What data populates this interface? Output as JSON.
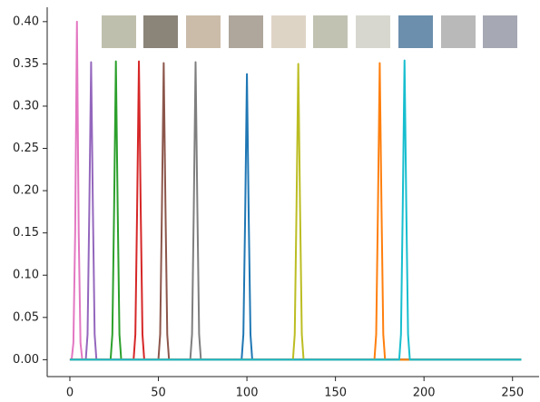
{
  "chart_data": {
    "type": "line",
    "series": [
      {
        "color": "#e377c2",
        "x": [
          0,
          1,
          2,
          3,
          4,
          5,
          6,
          7,
          8,
          255
        ],
        "values": [
          0,
          0,
          0.02,
          0.15,
          0.4,
          0.15,
          0.02,
          0,
          0,
          0
        ]
      },
      {
        "color": "#9467bd",
        "x": [
          0,
          8,
          9,
          10,
          11,
          12,
          13,
          14,
          15,
          16,
          255
        ],
        "values": [
          0,
          0,
          0,
          0.03,
          0.18,
          0.352,
          0.18,
          0.03,
          0,
          0,
          0
        ]
      },
      {
        "color": "#2ca02c",
        "x": [
          0,
          22,
          23,
          24,
          25,
          26,
          27,
          28,
          29,
          30,
          255
        ],
        "values": [
          0,
          0,
          0,
          0.03,
          0.18,
          0.353,
          0.18,
          0.03,
          0,
          0,
          0
        ]
      },
      {
        "color": "#d62728",
        "x": [
          0,
          35,
          36,
          37,
          38,
          39,
          40,
          41,
          42,
          43,
          255
        ],
        "values": [
          0,
          0,
          0,
          0.03,
          0.18,
          0.353,
          0.18,
          0.03,
          0,
          0,
          0
        ]
      },
      {
        "color": "#8c564b",
        "x": [
          0,
          49,
          50,
          51,
          52,
          53,
          54,
          55,
          56,
          57,
          255
        ],
        "values": [
          0,
          0,
          0,
          0.03,
          0.18,
          0.351,
          0.18,
          0.03,
          0,
          0,
          0
        ]
      },
      {
        "color": "#7f7f7f",
        "x": [
          0,
          67,
          68,
          69,
          70,
          71,
          72,
          73,
          74,
          75,
          255
        ],
        "values": [
          0,
          0,
          0,
          0.03,
          0.18,
          0.352,
          0.18,
          0.03,
          0,
          0,
          0
        ]
      },
      {
        "color": "#1f77b4",
        "x": [
          0,
          96,
          97,
          98,
          99,
          100,
          101,
          102,
          103,
          104,
          255
        ],
        "values": [
          0,
          0,
          0,
          0.03,
          0.17,
          0.338,
          0.17,
          0.03,
          0,
          0,
          0
        ]
      },
      {
        "color": "#bcbd22",
        "x": [
          0,
          125,
          126,
          127,
          128,
          129,
          130,
          131,
          132,
          133,
          255
        ],
        "values": [
          0,
          0,
          0,
          0.03,
          0.18,
          0.35,
          0.18,
          0.03,
          0,
          0,
          0
        ]
      },
      {
        "color": "#ff7f0e",
        "x": [
          0,
          171,
          172,
          173,
          174,
          175,
          176,
          177,
          178,
          179,
          255
        ],
        "values": [
          0,
          0,
          0,
          0.03,
          0.18,
          0.351,
          0.18,
          0.03,
          0,
          0,
          0
        ]
      },
      {
        "color": "#17becf",
        "x": [
          0,
          185,
          186,
          187,
          188,
          189,
          190,
          191,
          192,
          193,
          255
        ],
        "values": [
          0,
          0,
          0,
          0.03,
          0.18,
          0.354,
          0.18,
          0.03,
          0,
          0,
          0
        ]
      }
    ],
    "xlim": [
      -12.8,
      265
    ],
    "xticks": [
      0,
      50,
      100,
      150,
      200,
      250
    ],
    "ylim": [
      -0.02,
      0.417
    ],
    "yticks": [
      {
        "value": 0,
        "label": "0.00"
      },
      {
        "value": 0.05,
        "label": "0.05"
      },
      {
        "value": 0.1,
        "label": "0.10"
      },
      {
        "value": 0.15,
        "label": "0.15"
      },
      {
        "value": 0.2,
        "label": "0.20"
      },
      {
        "value": 0.25,
        "label": "0.25"
      },
      {
        "value": 0.3,
        "label": "0.30"
      },
      {
        "value": 0.35,
        "label": "0.35"
      },
      {
        "value": 0.4,
        "label": "0.40"
      }
    ],
    "grid": false
  }
}
